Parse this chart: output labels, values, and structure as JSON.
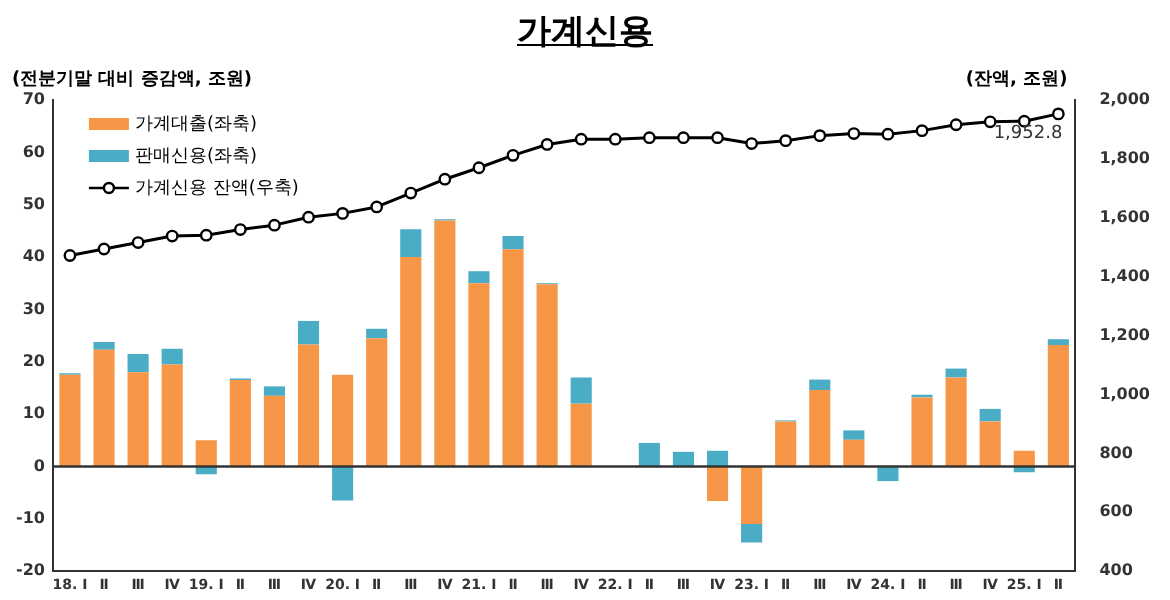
{
  "chart_data": {
    "type": "bar",
    "title": "가계신용",
    "ylabel": "(전분기말 대비 증감액, 조원)",
    "y2label": "(잔액, 조원)",
    "categories": [
      "18. Ⅰ",
      "Ⅱ",
      "Ⅲ",
      "Ⅳ",
      "19. Ⅰ",
      "Ⅱ",
      "Ⅲ",
      "Ⅳ",
      "20. Ⅰ",
      "Ⅱ",
      "Ⅲ",
      "Ⅳ",
      "21. Ⅰ",
      "Ⅱ",
      "Ⅲ",
      "Ⅳ",
      "22. Ⅰ",
      "Ⅱ",
      "Ⅲ",
      "Ⅳ",
      "23. Ⅰ",
      "Ⅱ",
      "Ⅲ",
      "Ⅳ",
      "24. Ⅰ",
      "Ⅱ",
      "Ⅲ",
      "Ⅳ",
      "25. Ⅰ",
      "Ⅱ"
    ],
    "stacked": true,
    "series": [
      {
        "name": "가계대출(좌축)",
        "color": "#f79646",
        "values": [
          17.5,
          22.3,
          18,
          19.5,
          5,
          16.5,
          13.5,
          23.3,
          17.5,
          24.5,
          40,
          47,
          35,
          41.5,
          34.8,
          12,
          null,
          null,
          null,
          -6.6,
          -11,
          8.6,
          14.6,
          5.1,
          0,
          13.2,
          17,
          8.6,
          3,
          23.2
        ]
      },
      {
        "name": "판매신용(좌축)",
        "color": "#4bacc6",
        "values": [
          0.3,
          1.5,
          3.5,
          3,
          -1.5,
          0.3,
          1.8,
          4.5,
          -6.5,
          1.8,
          5.3,
          0.2,
          2.3,
          2.5,
          0.2,
          5,
          null,
          4.5,
          2.8,
          3,
          -3.5,
          0.2,
          2,
          1.8,
          -2.8,
          0.5,
          1.7,
          2.4,
          -1.1,
          1.1
        ]
      },
      {
        "name": "가계신용 잔액(우축)",
        "type": "line",
        "axis": "y2",
        "color": "#000000",
        "values": [
          1472,
          1494,
          1516,
          1538,
          1541,
          1560,
          1575,
          1602,
          1615,
          1637,
          1684,
          1731,
          1770,
          1812,
          1849,
          1867,
          1867,
          1872,
          1872,
          1872,
          1852,
          1862,
          1879,
          1886,
          1884,
          1896,
          1916,
          1926,
          1928,
          1952.8
        ],
        "value_labels": [
          null,
          null,
          null,
          null,
          null,
          null,
          null,
          null,
          null,
          null,
          null,
          null,
          null,
          null,
          null,
          null,
          null,
          null,
          null,
          null,
          null,
          null,
          null,
          null,
          null,
          null,
          null,
          null,
          null,
          "1,952.8"
        ]
      }
    ],
    "ref_lines": [
      {
        "axis": "y",
        "value": 0,
        "color": "#333333"
      }
    ],
    "ylim": [
      -20,
      70
    ],
    "yticks": [
      -20,
      -10,
      0,
      10,
      20,
      30,
      40,
      50,
      60,
      70
    ],
    "y2lim": [
      400,
      2000
    ],
    "y2ticks": [
      {
        "value": 400,
        "label": "400"
      },
      {
        "value": 600,
        "label": "600"
      },
      {
        "value": 800,
        "label": "800"
      },
      {
        "value": 1000,
        "label": "1,000"
      },
      {
        "value": 1200,
        "label": "1,200"
      },
      {
        "value": 1400,
        "label": "1,400"
      },
      {
        "value": 1600,
        "label": "1,600"
      },
      {
        "value": 1800,
        "label": "1,800"
      },
      {
        "value": 2000,
        "label": "2,000"
      }
    ],
    "marker": "circle",
    "legend": "top left",
    "grid": false
  }
}
